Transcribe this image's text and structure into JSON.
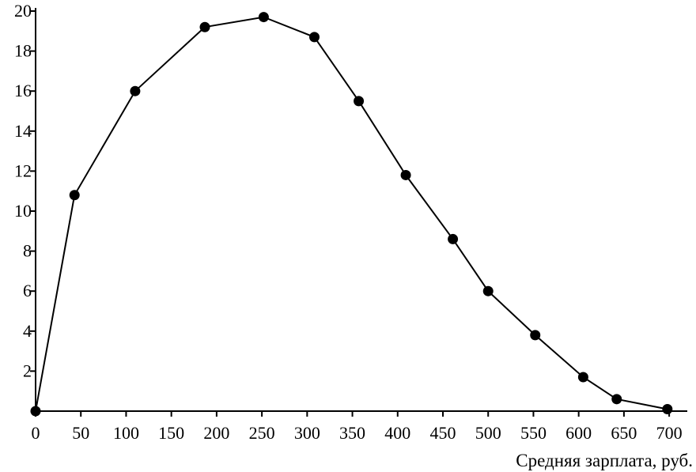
{
  "chart_data": {
    "type": "line",
    "title": "",
    "xlabel": "Средняя зарплата, руб.",
    "ylabel": "",
    "xlim": [
      0,
      720
    ],
    "ylim": [
      0,
      20
    ],
    "xticks": [
      0,
      50,
      100,
      150,
      200,
      250,
      300,
      350,
      400,
      450,
      500,
      550,
      600,
      650,
      700
    ],
    "yticks": [
      2,
      4,
      6,
      8,
      10,
      12,
      14,
      16,
      18,
      20
    ],
    "grid": false,
    "legend": "none",
    "series": [
      {
        "x": [
          0,
          43,
          110,
          187,
          252,
          308,
          357,
          409,
          461,
          500,
          552,
          605,
          642,
          698
        ],
        "y": [
          0.0,
          10.8,
          16.0,
          19.2,
          19.7,
          18.7,
          15.5,
          11.8,
          8.6,
          6.0,
          3.8,
          1.7,
          0.6,
          0.1
        ]
      }
    ]
  }
}
